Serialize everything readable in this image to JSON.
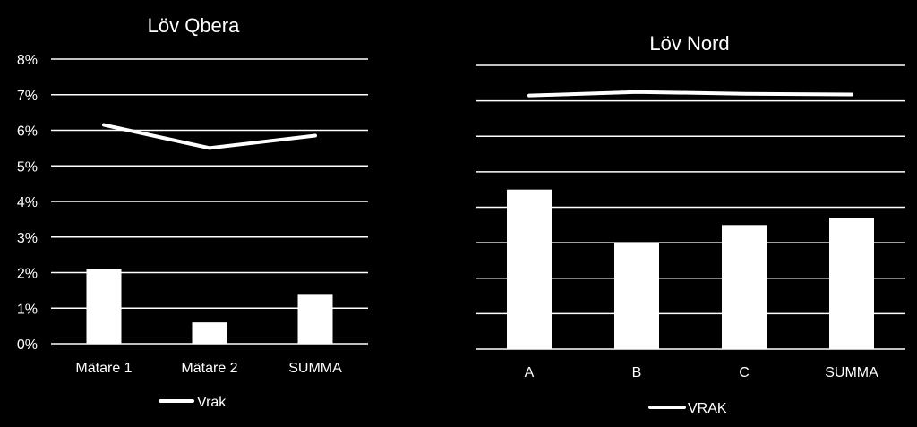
{
  "chart_data": [
    {
      "type": "bar",
      "title": "Löv Qbera",
      "categories": [
        "Mätare 1",
        "Mätare 2",
        "SUMMA"
      ],
      "values": [
        2.1,
        0.6,
        1.4
      ],
      "ylim": [
        0,
        8
      ],
      "yticks": [
        "0%",
        "1%",
        "2%",
        "3%",
        "4%",
        "5%",
        "6%",
        "7%",
        "8%"
      ],
      "line_series": {
        "name": "Vrak",
        "values": [
          6.15,
          5.5,
          5.85
        ]
      },
      "grid": true,
      "legend": "bottom",
      "colors": {
        "bar": "#ffffff",
        "line": "#ffffff",
        "grid": "#ffffff",
        "background": "#000000"
      }
    },
    {
      "type": "bar",
      "title": "Löv Nord",
      "categories": [
        "A",
        "B",
        "C",
        "SUMMA"
      ],
      "values": [
        4.5,
        3.0,
        3.5,
        3.7
      ],
      "ylim": [
        0,
        8
      ],
      "line_series": {
        "name": "VRAK",
        "values": [
          7.15,
          7.25,
          7.2,
          7.18
        ]
      },
      "grid": true,
      "legend": "bottom",
      "colors": {
        "bar": "#ffffff",
        "line": "#ffffff",
        "grid": "#ffffff",
        "background": "#000000"
      }
    }
  ]
}
